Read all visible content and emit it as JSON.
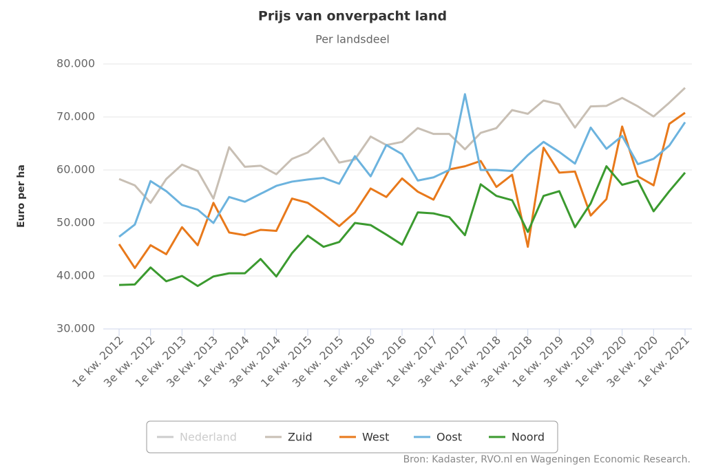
{
  "chart_data": {
    "type": "line",
    "title": "Prijs van onverpacht land",
    "subtitle": "Per landsdeel",
    "y_label": "Euro per ha",
    "source": "Bron: Kadaster, RVO.nl en Wageningen Economic Research.",
    "categories": [
      "1e kw. 2012",
      null,
      "3e kw. 2012",
      null,
      "1e kw. 2013",
      null,
      "3e kw. 2013",
      null,
      "1e kw. 2014",
      null,
      "3e kw. 2014",
      null,
      "1e kw. 2015",
      null,
      "3e kw. 2015",
      null,
      "1e kw. 2016",
      null,
      "3e kw. 2016",
      null,
      "1e kw. 2017",
      null,
      "3e kw. 2017",
      null,
      "1e kw. 2018",
      null,
      "3e kw. 2018",
      null,
      "1e kw. 2019",
      null,
      "3e kw. 2019",
      null,
      "1e kw. 2020",
      null,
      "3e kw. 2020",
      null,
      "1e kw. 2021"
    ],
    "series": [
      {
        "name": "Nederland",
        "color": "#cccccc",
        "visible": false
      },
      {
        "name": "Zuid",
        "color": "#c8bfb4",
        "values": [
          58300,
          57100,
          53800,
          58300,
          61000,
          59800,
          54600,
          64300,
          60600,
          60800,
          59200,
          62100,
          63300,
          66000,
          61400,
          62000,
          66300,
          64700,
          65300,
          67900,
          66800,
          66800,
          63900,
          67000,
          67900,
          71300,
          70600,
          73100,
          72400,
          68000,
          72000,
          72100,
          73600,
          72000,
          70100,
          72700,
          75500
        ]
      },
      {
        "name": "West",
        "color": "#e8791b",
        "values": [
          46000,
          41500,
          45800,
          44100,
          49200,
          45800,
          53800,
          48200,
          47700,
          48700,
          48500,
          54600,
          53800,
          51700,
          49400,
          52000,
          56500,
          54900,
          58400,
          55900,
          54400,
          60100,
          60700,
          61700,
          56800,
          59100,
          45500,
          64200,
          59500,
          59700,
          51400,
          54500,
          68200,
          58800,
          57100,
          68700,
          70800
        ]
      },
      {
        "name": "Oost",
        "color": "#6cb3de",
        "values": [
          47400,
          49700,
          57900,
          56000,
          53400,
          52500,
          50000,
          54900,
          54000,
          55500,
          57000,
          57800,
          58200,
          58500,
          57400,
          62600,
          58800,
          64700,
          63000,
          58000,
          58600,
          60000,
          74300,
          60000,
          60000,
          59800,
          62800,
          65300,
          63400,
          61200,
          68000,
          64000,
          66400,
          61100,
          62100,
          64600,
          69000
        ]
      },
      {
        "name": "Noord",
        "color": "#3b9a2f",
        "values": [
          38300,
          38400,
          41600,
          39000,
          40000,
          38100,
          39900,
          40500,
          40500,
          43200,
          39900,
          44300,
          47600,
          45500,
          46400,
          50000,
          49600,
          47800,
          45900,
          52000,
          51800,
          51100,
          47700,
          57300,
          55100,
          54300,
          48300,
          55100,
          56000,
          49200,
          53700,
          60700,
          57200,
          58000,
          52200,
          56000,
          59500
        ]
      }
    ],
    "ylim": [
      30000,
      80000
    ],
    "yticks": [
      {
        "value": 30000,
        "label": "30.000"
      },
      {
        "value": 40000,
        "label": "40.000"
      },
      {
        "value": 50000,
        "label": "50.000"
      },
      {
        "value": 60000,
        "label": "60.000"
      },
      {
        "value": 70000,
        "label": "70.000"
      },
      {
        "value": 80000,
        "label": "80.000"
      }
    ],
    "grid": true,
    "legend": "bottom"
  }
}
